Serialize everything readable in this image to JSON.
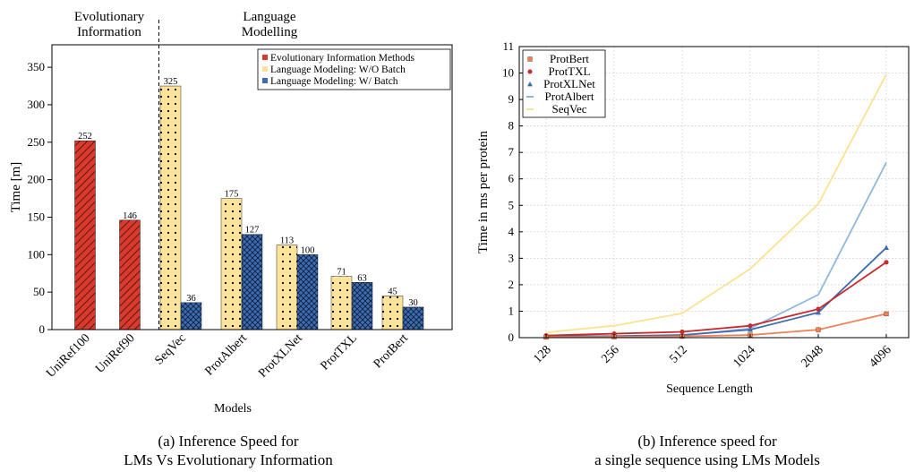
{
  "chart_data": [
    {
      "type": "bar",
      "caption_line1": "(a) Inference Speed for",
      "caption_line2": "LMs Vs Evolutionary Information",
      "xlabel": "Models",
      "ylabel": "Time [m]",
      "ylim": [
        0,
        380
      ],
      "yticks": [
        0,
        50,
        100,
        150,
        200,
        250,
        300,
        350
      ],
      "group_labels": [
        {
          "lines": [
            "Evolutionary",
            "Information"
          ]
        },
        {
          "lines": [
            "Language",
            "Modelling"
          ]
        }
      ],
      "legend": {
        "placement": "top-right",
        "entries": [
          {
            "key": "ei",
            "label": "Evolutionary Information Methods",
            "color": "#d93a2b"
          },
          {
            "key": "wo",
            "label": "Language Modeling: W/O Batch",
            "color": "#fbe39a"
          },
          {
            "key": "w",
            "label": "Language Modeling: W/ Batch",
            "color": "#3d6cb0"
          }
        ]
      },
      "categories": [
        "UniRef100",
        "UniRef90",
        "SeqVec",
        "ProtAlbert",
        "ProtXLNet",
        "ProtTXL",
        "ProtBert"
      ],
      "series": [
        {
          "key": "ei",
          "values": [
            252,
            146,
            null,
            null,
            null,
            null,
            null
          ]
        },
        {
          "key": "wo",
          "values": [
            null,
            null,
            325,
            175,
            113,
            71,
            45
          ]
        },
        {
          "key": "w",
          "values": [
            null,
            null,
            36,
            127,
            100,
            63,
            30
          ]
        }
      ]
    },
    {
      "type": "line",
      "caption_line1": "(b) Inference speed for",
      "caption_line2": "a single sequence using LMs Models",
      "xlabel": "Sequence Length",
      "ylabel": "Time in ms per protein",
      "ylim": [
        0,
        11
      ],
      "yticks": [
        0,
        1,
        2,
        3,
        4,
        5,
        6,
        7,
        8,
        9,
        10,
        11
      ],
      "x": [
        "128",
        "256",
        "512",
        "1024",
        "2048",
        "4096"
      ],
      "legend_placement": "top-left",
      "series": [
        {
          "name": "ProtBert",
          "color": "#f0825a",
          "marker": "square",
          "values": [
            0.02,
            0.03,
            0.05,
            0.1,
            0.3,
            0.9
          ]
        },
        {
          "name": "ProtTXL",
          "color": "#c62b2b",
          "marker": "circle",
          "values": [
            0.08,
            0.15,
            0.22,
            0.45,
            1.08,
            2.85
          ]
        },
        {
          "name": "ProtXLNet",
          "color": "#3d6cb0",
          "marker": "triangle",
          "values": [
            0.05,
            0.06,
            0.1,
            0.3,
            0.95,
            3.4
          ]
        },
        {
          "name": "ProtAlbert",
          "color": "#8fb8df",
          "marker": "none",
          "values": [
            0.02,
            0.04,
            0.08,
            0.35,
            1.62,
            6.62
          ]
        },
        {
          "name": "SeqVec",
          "color": "#fde28f",
          "marker": "none",
          "values": [
            0.2,
            0.45,
            0.92,
            2.6,
            5.05,
            9.95
          ]
        }
      ]
    }
  ]
}
